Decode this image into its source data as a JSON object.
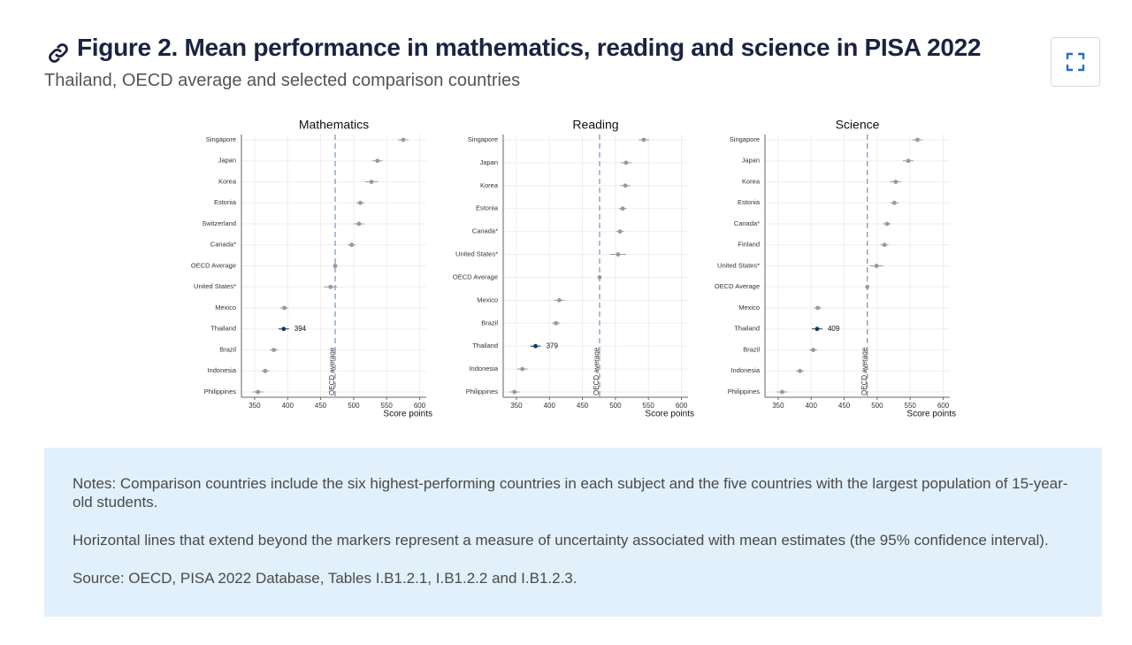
{
  "header": {
    "title": "Figure 2. Mean performance in mathematics, reading and science in PISA 2022",
    "subtitle": "Thailand, OECD average and selected comparison countries"
  },
  "chart_data": [
    {
      "type": "dot",
      "title": "Mathematics",
      "x_label": "Score points",
      "categories": [
        "Singapore",
        "Japan",
        "Korea",
        "Estonia",
        "Switzerland",
        "Canada*",
        "OECD Average",
        "United States*",
        "Mexico",
        "Thailand",
        "Brazil",
        "Indonesia",
        "Philippines"
      ],
      "values": [
        575,
        536,
        527,
        510,
        508,
        497,
        472,
        465,
        395,
        394,
        379,
        366,
        355
      ],
      "errors": [
        4,
        4,
        5,
        3,
        4,
        3,
        1,
        5,
        3,
        4,
        3,
        3,
        4
      ],
      "value_labels": [
        null,
        null,
        null,
        null,
        null,
        null,
        null,
        null,
        null,
        "394",
        null,
        null,
        null
      ],
      "colors": [
        "#999999",
        "#999999",
        "#999999",
        "#999999",
        "#999999",
        "#999999",
        "#999999",
        "#999999",
        "#999999",
        "#0b3a66",
        "#999999",
        "#999999",
        "#999999"
      ],
      "reference": {
        "value": 472,
        "label": "OECD average"
      },
      "xlim": [
        330,
        610
      ],
      "xticks": [
        350,
        400,
        450,
        500,
        550,
        600
      ],
      "grid": true
    },
    {
      "type": "dot",
      "title": "Reading",
      "x_label": "Score points",
      "categories": [
        "Singapore",
        "Japan",
        "Korea",
        "Estonia",
        "Canada*",
        "United States*",
        "OECD Average",
        "Mexico",
        "Brazil",
        "Thailand",
        "Indonesia",
        "Philippines"
      ],
      "values": [
        543,
        516,
        515,
        511,
        507,
        504,
        476,
        415,
        410,
        379,
        359,
        347
      ],
      "errors": [
        4,
        4,
        4,
        3,
        3,
        6,
        1,
        4,
        3,
        4,
        4,
        4
      ],
      "value_labels": [
        null,
        null,
        null,
        null,
        null,
        null,
        null,
        null,
        null,
        "379",
        null,
        null
      ],
      "colors": [
        "#999999",
        "#999999",
        "#999999",
        "#999999",
        "#999999",
        "#999999",
        "#999999",
        "#999999",
        "#999999",
        "#0b3a66",
        "#999999",
        "#999999"
      ],
      "reference": {
        "value": 476,
        "label": "OECD average"
      },
      "xlim": [
        330,
        610
      ],
      "xticks": [
        350,
        400,
        450,
        500,
        550,
        600
      ],
      "grid": true
    },
    {
      "type": "dot",
      "title": "Science",
      "x_label": "Score points",
      "categories": [
        "Singapore",
        "Japan",
        "Korea",
        "Estonia",
        "Canada*",
        "Finland",
        "United States*",
        "OECD Average",
        "Mexico",
        "Thailand",
        "Brazil",
        "Indonesia",
        "Philippines"
      ],
      "values": [
        561,
        547,
        528,
        526,
        515,
        511,
        499,
        485,
        410,
        409,
        403,
        383,
        356
      ],
      "errors": [
        4,
        4,
        4,
        3,
        3,
        3,
        5,
        1,
        3,
        4,
        3,
        3,
        4
      ],
      "value_labels": [
        null,
        null,
        null,
        null,
        null,
        null,
        null,
        null,
        null,
        "409",
        null,
        null,
        null
      ],
      "colors": [
        "#999999",
        "#999999",
        "#999999",
        "#999999",
        "#999999",
        "#999999",
        "#999999",
        "#999999",
        "#999999",
        "#0b3a66",
        "#999999",
        "#999999",
        "#999999"
      ],
      "reference": {
        "value": 485,
        "label": "OECD average"
      },
      "xlim": [
        330,
        610
      ],
      "xticks": [
        350,
        400,
        450,
        500,
        550,
        600
      ],
      "grid": true
    }
  ],
  "notes": [
    "Notes: Comparison countries include the six highest-performing countries in each subject and the five countries with the largest population of 15-year-old students.",
    "Horizontal lines that extend beyond the markers represent a measure of uncertainty associated with mean estimates (the 95% confidence interval).",
    "Source: OECD, PISA 2022 Database, Tables I.B1.2.1, I.B1.2.2 and I.B1.2.3."
  ]
}
